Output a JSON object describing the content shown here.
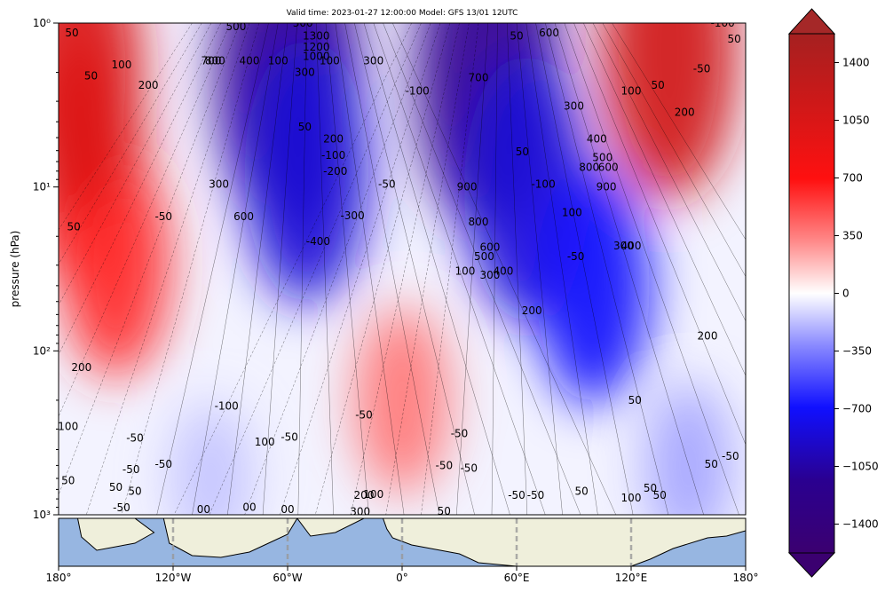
{
  "title": "Valid time: 2023-01-27 12:00:00 Model: GFS 13/01 12UTC",
  "chart_data": {
    "type": "heatmap",
    "title": "Valid time: 2023-01-27 12:00:00 Model: GFS 13/01 12UTC",
    "ylabel": "pressure (hPa)",
    "xlabel": "",
    "xlim": [
      -180,
      180
    ],
    "ylim": [
      1000,
      1
    ],
    "y_scale": "log",
    "x_ticks": [
      -180,
      -120,
      -60,
      0,
      60,
      120,
      180
    ],
    "x_tick_labels": [
      "180°",
      "120°W",
      "60°W",
      "0°",
      "60°E",
      "120°E",
      "180°"
    ],
    "y_ticks": [
      1000,
      100,
      10,
      1
    ],
    "y_tick_labels": [
      "10³",
      "10²",
      "10¹",
      "10⁰"
    ],
    "colorbar": {
      "range": [
        -1575,
        1575
      ],
      "ticks": [
        -1400,
        -1050,
        -700,
        -350,
        0,
        350,
        700,
        1050,
        1400
      ],
      "extend": "both",
      "colors": [
        "#3b0070",
        "#1010ff",
        "#ffffff",
        "#ff1010",
        "#a52020"
      ]
    },
    "field_centers": [
      {
        "lon": -165,
        "p": 8,
        "value": 900
      },
      {
        "lon": -150,
        "p": 30,
        "value": 700
      },
      {
        "lon": -170,
        "p": 2,
        "value": 1100
      },
      {
        "lon": -60,
        "p": 2,
        "value": -1400
      },
      {
        "lon": -50,
        "p": 8,
        "value": -1000
      },
      {
        "lon": 45,
        "p": 2,
        "value": -1400
      },
      {
        "lon": 65,
        "p": 10,
        "value": -1000
      },
      {
        "lon": 100,
        "p": 40,
        "value": -800
      },
      {
        "lon": 140,
        "p": 1.5,
        "value": 1200
      },
      {
        "lon": 0,
        "p": 200,
        "value": 450
      },
      {
        "lon": -100,
        "p": 600,
        "value": -200
      },
      {
        "lon": 150,
        "p": 500,
        "value": -300
      }
    ],
    "contour_labels": [
      {
        "lon": -173,
        "p": 1.15,
        "text": "50"
      },
      {
        "lon": -163,
        "p": 2.1,
        "text": "50"
      },
      {
        "lon": -147,
        "p": 1.8,
        "text": "100"
      },
      {
        "lon": -133,
        "p": 2.4,
        "text": "200"
      },
      {
        "lon": -100,
        "p": 1.7,
        "text": "700"
      },
      {
        "lon": -98,
        "p": 1.7,
        "text": "800"
      },
      {
        "lon": -87,
        "p": 1.05,
        "text": "500"
      },
      {
        "lon": -80,
        "p": 1.7,
        "text": "400"
      },
      {
        "lon": -65,
        "p": 1.7,
        "text": "100"
      },
      {
        "lon": -52,
        "p": 1.0,
        "text": "300"
      },
      {
        "lon": -45,
        "p": 1.2,
        "text": "1300"
      },
      {
        "lon": -45,
        "p": 1.4,
        "text": "1200"
      },
      {
        "lon": -45,
        "p": 1.6,
        "text": "1000"
      },
      {
        "lon": -38,
        "p": 1.7,
        "text": "100"
      },
      {
        "lon": -51,
        "p": 2.0,
        "text": "300"
      },
      {
        "lon": -15,
        "p": 1.7,
        "text": "300"
      },
      {
        "lon": 8,
        "p": 2.6,
        "text": "-100"
      },
      {
        "lon": -51,
        "p": 4.3,
        "text": "50"
      },
      {
        "lon": -36,
        "p": 5.1,
        "text": "200"
      },
      {
        "lon": -36,
        "p": 6.4,
        "text": "-100"
      },
      {
        "lon": -35,
        "p": 8.0,
        "text": "-200"
      },
      {
        "lon": -8,
        "p": 9.6,
        "text": "-50"
      },
      {
        "lon": -96,
        "p": 9.6,
        "text": "300"
      },
      {
        "lon": -83,
        "p": 15.2,
        "text": "600"
      },
      {
        "lon": -125,
        "p": 15.2,
        "text": "-50"
      },
      {
        "lon": -172,
        "p": 17.5,
        "text": "50"
      },
      {
        "lon": -26,
        "p": 15.0,
        "text": "-300"
      },
      {
        "lon": -44,
        "p": 21.5,
        "text": "-400"
      },
      {
        "lon": 34,
        "p": 10.0,
        "text": "900"
      },
      {
        "lon": 40,
        "p": 16.3,
        "text": "800"
      },
      {
        "lon": 46,
        "p": 23.3,
        "text": "600"
      },
      {
        "lon": 43,
        "p": 26.6,
        "text": "500"
      },
      {
        "lon": 33,
        "p": 32.7,
        "text": "100"
      },
      {
        "lon": 46,
        "p": 34.5,
        "text": "300"
      },
      {
        "lon": 53,
        "p": 32.7,
        "text": "400"
      },
      {
        "lon": 63,
        "p": 6.1,
        "text": "50"
      },
      {
        "lon": 74,
        "p": 9.6,
        "text": "-100"
      },
      {
        "lon": 89,
        "p": 14.3,
        "text": "100"
      },
      {
        "lon": 90,
        "p": 3.2,
        "text": "300"
      },
      {
        "lon": 102,
        "p": 5.1,
        "text": "400"
      },
      {
        "lon": 105,
        "p": 6.6,
        "text": "500"
      },
      {
        "lon": 98,
        "p": 7.6,
        "text": "800"
      },
      {
        "lon": 108,
        "p": 7.6,
        "text": "600"
      },
      {
        "lon": 107,
        "p": 10.0,
        "text": "900"
      },
      {
        "lon": 91,
        "p": 26.6,
        "text": "-50"
      },
      {
        "lon": 116,
        "p": 22.9,
        "text": "300"
      },
      {
        "lon": 120,
        "p": 22.9,
        "text": "400"
      },
      {
        "lon": 68,
        "p": 56.8,
        "text": "200"
      },
      {
        "lon": 120,
        "p": 2.6,
        "text": "100"
      },
      {
        "lon": 134,
        "p": 2.4,
        "text": "50"
      },
      {
        "lon": 148,
        "p": 3.5,
        "text": "200"
      },
      {
        "lon": 157,
        "p": 1.9,
        "text": "-50"
      },
      {
        "lon": 168,
        "p": 1.0,
        "text": "-100"
      },
      {
        "lon": 174,
        "p": 1.25,
        "text": "50"
      },
      {
        "lon": 60,
        "p": 1.2,
        "text": "50"
      },
      {
        "lon": 77,
        "p": 1.15,
        "text": "600"
      },
      {
        "lon": 40,
        "p": 2.15,
        "text": "700"
      },
      {
        "lon": 160,
        "p": 81,
        "text": "200"
      },
      {
        "lon": -168,
        "p": 126,
        "text": "200"
      },
      {
        "lon": -92,
        "p": 217,
        "text": "-100"
      },
      {
        "lon": -20,
        "p": 246,
        "text": "-50"
      },
      {
        "lon": -175,
        "p": 290,
        "text": "100"
      },
      {
        "lon": -140,
        "p": 340,
        "text": "-50"
      },
      {
        "lon": -59,
        "p": 335,
        "text": "-50"
      },
      {
        "lon": -72,
        "p": 360,
        "text": "100"
      },
      {
        "lon": -125,
        "p": 490,
        "text": "-50"
      },
      {
        "lon": -142,
        "p": 530,
        "text": "-50"
      },
      {
        "lon": -175,
        "p": 620,
        "text": "50"
      },
      {
        "lon": -150,
        "p": 680,
        "text": "50"
      },
      {
        "lon": -140,
        "p": 720,
        "text": "50"
      },
      {
        "lon": -147,
        "p": 905,
        "text": "-50"
      },
      {
        "lon": -104,
        "p": 930,
        "text": "00"
      },
      {
        "lon": -80,
        "p": 900,
        "text": "00"
      },
      {
        "lon": -60,
        "p": 930,
        "text": "00"
      },
      {
        "lon": -20,
        "p": 760,
        "text": "200"
      },
      {
        "lon": -15,
        "p": 750,
        "text": "100"
      },
      {
        "lon": -22,
        "p": 960,
        "text": "300"
      },
      {
        "lon": 30,
        "p": 320,
        "text": "-50"
      },
      {
        "lon": 22,
        "p": 500,
        "text": "-50"
      },
      {
        "lon": 35,
        "p": 520,
        "text": "-50"
      },
      {
        "lon": 22,
        "p": 950,
        "text": "50"
      },
      {
        "lon": 60,
        "p": 760,
        "text": "-50"
      },
      {
        "lon": 70,
        "p": 760,
        "text": "-50"
      },
      {
        "lon": 94,
        "p": 720,
        "text": "50"
      },
      {
        "lon": 120,
        "p": 790,
        "text": "100"
      },
      {
        "lon": 130,
        "p": 690,
        "text": "50"
      },
      {
        "lon": 135,
        "p": 760,
        "text": "50"
      },
      {
        "lon": 162,
        "p": 490,
        "text": "50"
      },
      {
        "lon": 172,
        "p": 440,
        "text": "-50"
      },
      {
        "lon": 122,
        "p": 200,
        "text": "50"
      }
    ]
  },
  "map_colors": {
    "ocean": "#97b6e1",
    "land": "#efefdb"
  }
}
